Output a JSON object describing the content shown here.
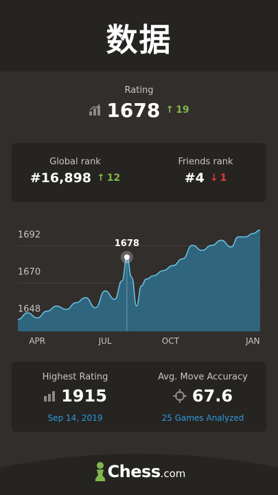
{
  "header": {
    "title": "数据"
  },
  "rating": {
    "label": "Rating",
    "value": "1678",
    "delta": "19"
  },
  "ranks": {
    "global": {
      "label": "Global rank",
      "value": "#16,898",
      "delta": "12",
      "direction": "up"
    },
    "friends": {
      "label": "Friends rank",
      "value": "#4",
      "delta": "1",
      "direction": "down"
    }
  },
  "chart_data": {
    "type": "area",
    "title": "",
    "xlabel": "",
    "ylabel": "",
    "x_ticks": [
      "APR",
      "JUL",
      "OCT",
      "JAN"
    ],
    "y_ticks": [
      1648,
      1670,
      1692
    ],
    "ylim": [
      1634,
      1700
    ],
    "grid": true,
    "highlight": {
      "x": 0.45,
      "value": "1678"
    },
    "series": [
      {
        "x": [
          0,
          0.04,
          0.08,
          0.12,
          0.16,
          0.2,
          0.24,
          0.28,
          0.32,
          0.36,
          0.4,
          0.43,
          0.45,
          0.47,
          0.49,
          0.51,
          0.53,
          0.56,
          0.6,
          0.64,
          0.68,
          0.72,
          0.76,
          0.8,
          0.84,
          0.88,
          0.91,
          0.94,
          0.97,
          1.0
        ],
        "values": [
          1641,
          1645,
          1642,
          1646,
          1649,
          1647,
          1651,
          1654,
          1648,
          1658,
          1653,
          1664,
          1678,
          1666,
          1649,
          1661,
          1665,
          1667,
          1670,
          1673,
          1677,
          1685,
          1682,
          1685,
          1688,
          1684,
          1690,
          1690,
          1692,
          1694
        ]
      }
    ],
    "colors": {
      "line": "#6cc0e2",
      "fill": "#2f6f8c",
      "grid": "#45423f"
    }
  },
  "stats": {
    "highest": {
      "label": "Highest Rating",
      "value": "1915",
      "sub": "Sep 14, 2019"
    },
    "accuracy": {
      "label": "Avg. Move Accuracy",
      "value": "67.6",
      "sub": "25 Games Analyzed"
    }
  },
  "footer": {
    "brand": "Chess",
    "brand_suffix": ".com"
  },
  "icons": {
    "rating": "rating-bars-icon",
    "crosshair": "crosshair-icon",
    "logo": "pawn-logo-icon"
  },
  "theme": {
    "up": "#81b64c",
    "down": "#e53935",
    "link": "#2c9be0",
    "logo_green": "#81b64c"
  }
}
